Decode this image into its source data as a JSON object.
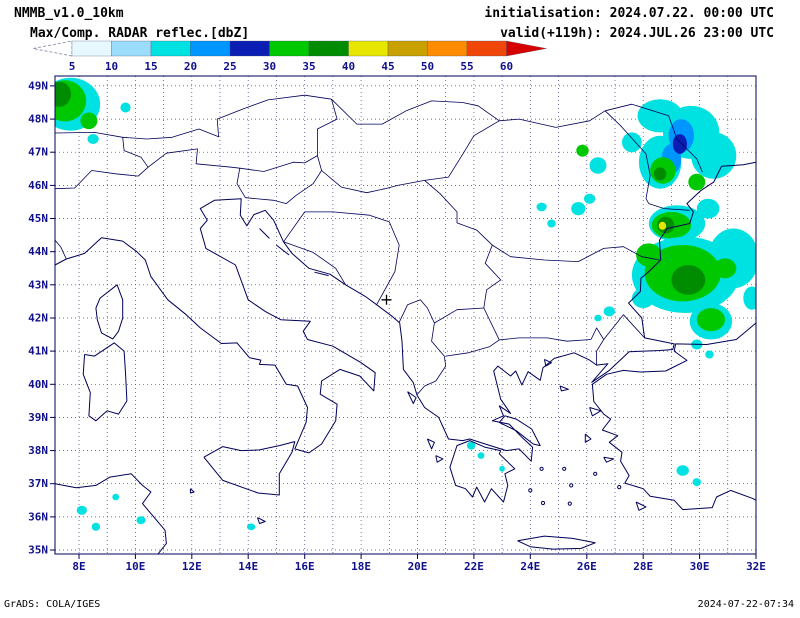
{
  "header": {
    "model": "NMMB_v1.0_10km",
    "init": "initialisation: 2024.07.22. 00:00 UTC",
    "field": "Max/Comp. RADAR reflec.[dbZ]",
    "valid": "valid(+119h): 2024.JUL.26 23:00 UTC"
  },
  "colorbar": {
    "unit": "dbZ",
    "ticks": [
      "5",
      "10",
      "15",
      "20",
      "25",
      "30",
      "35",
      "40",
      "45",
      "50",
      "55",
      "60"
    ],
    "segments": [
      {
        "range": "<5",
        "color": "#ffffff"
      },
      {
        "range": "5-10",
        "color": "#e8f8ff"
      },
      {
        "range": "10-15",
        "color": "#9bdcfa"
      },
      {
        "range": "15-20",
        "color": "#00e1e1"
      },
      {
        "range": "20-25",
        "color": "#0096ff"
      },
      {
        "range": "25-30",
        "color": "#0a1eb4"
      },
      {
        "range": "30-35",
        "color": "#00c800"
      },
      {
        "range": "35-40",
        "color": "#008c00"
      },
      {
        "range": "40-45",
        "color": "#e6e600"
      },
      {
        "range": "45-50",
        "color": "#c8a000"
      },
      {
        "range": "50-55",
        "color": "#ff8c00"
      },
      {
        "range": "55-60",
        "color": "#f0460a"
      },
      {
        "range": ">60",
        "color": "#d70000"
      }
    ]
  },
  "map": {
    "lat_labels": [
      "49N",
      "48N",
      "47N",
      "46N",
      "45N",
      "44N",
      "43N",
      "42N",
      "41N",
      "40N",
      "39N",
      "38N",
      "37N",
      "36N",
      "35N"
    ],
    "lon_labels": [
      "8E",
      "10E",
      "12E",
      "14E",
      "16E",
      "18E",
      "20E",
      "22E",
      "24E",
      "26E",
      "28E",
      "30E",
      "32E"
    ],
    "lon_min": 8,
    "lon_max": 32,
    "lat_min": 35,
    "lat_max": 49,
    "grid_color": "#3a3a96",
    "coast_color": "#000058",
    "label_color": "#10108c",
    "marker": {
      "symbol": "+",
      "lon": 18.9,
      "lat": 42.55
    },
    "blobs": [
      {
        "level": 3,
        "lon": 7.7,
        "lat": 48.45,
        "rx": 1.05,
        "ry": 0.8
      },
      {
        "level": 6,
        "lon": 7.5,
        "lat": 48.55,
        "rx": 0.75,
        "ry": 0.62
      },
      {
        "level": 7,
        "lon": 7.3,
        "lat": 48.75,
        "rx": 0.42,
        "ry": 0.38
      },
      {
        "level": 6,
        "lon": 8.35,
        "lat": 47.95,
        "rx": 0.3,
        "ry": 0.25
      },
      {
        "level": 3,
        "lon": 9.65,
        "lat": 48.35,
        "rx": 0.18,
        "ry": 0.15
      },
      {
        "level": 3,
        "lon": 8.5,
        "lat": 47.4,
        "rx": 0.2,
        "ry": 0.15
      },
      {
        "level": 3,
        "lon": 28.6,
        "lat": 48.1,
        "rx": 0.8,
        "ry": 0.5
      },
      {
        "level": 3,
        "lon": 29.7,
        "lat": 47.6,
        "rx": 1.0,
        "ry": 0.8
      },
      {
        "level": 3,
        "lon": 30.5,
        "lat": 46.9,
        "rx": 0.8,
        "ry": 0.7
      },
      {
        "level": 3,
        "lon": 28.6,
        "lat": 46.7,
        "rx": 0.75,
        "ry": 0.8
      },
      {
        "level": 4,
        "lon": 29.35,
        "lat": 47.5,
        "rx": 0.45,
        "ry": 0.5
      },
      {
        "level": 4,
        "lon": 29.0,
        "lat": 46.8,
        "rx": 0.35,
        "ry": 0.45
      },
      {
        "level": 5,
        "lon": 29.3,
        "lat": 47.25,
        "rx": 0.25,
        "ry": 0.3
      },
      {
        "level": 6,
        "lon": 28.7,
        "lat": 46.45,
        "rx": 0.45,
        "ry": 0.4
      },
      {
        "level": 7,
        "lon": 28.6,
        "lat": 46.35,
        "rx": 0.22,
        "ry": 0.2
      },
      {
        "level": 6,
        "lon": 29.9,
        "lat": 46.1,
        "rx": 0.3,
        "ry": 0.25
      },
      {
        "level": 3,
        "lon": 27.6,
        "lat": 47.3,
        "rx": 0.35,
        "ry": 0.3
      },
      {
        "level": 6,
        "lon": 25.85,
        "lat": 47.05,
        "rx": 0.22,
        "ry": 0.18
      },
      {
        "level": 3,
        "lon": 26.4,
        "lat": 46.6,
        "rx": 0.3,
        "ry": 0.25
      },
      {
        "level": 3,
        "lon": 25.7,
        "lat": 45.3,
        "rx": 0.25,
        "ry": 0.2
      },
      {
        "level": 3,
        "lon": 26.1,
        "lat": 45.6,
        "rx": 0.2,
        "ry": 0.15
      },
      {
        "level": 3,
        "lon": 24.4,
        "lat": 45.35,
        "rx": 0.18,
        "ry": 0.13
      },
      {
        "level": 3,
        "lon": 24.75,
        "lat": 44.85,
        "rx": 0.15,
        "ry": 0.12
      },
      {
        "level": 3,
        "lon": 29.2,
        "lat": 44.85,
        "rx": 1.0,
        "ry": 0.55
      },
      {
        "level": 6,
        "lon": 29.0,
        "lat": 44.8,
        "rx": 0.7,
        "ry": 0.4
      },
      {
        "level": 7,
        "lon": 28.8,
        "lat": 44.8,
        "rx": 0.3,
        "ry": 0.25
      },
      {
        "level": 8,
        "lon": 28.68,
        "lat": 44.78,
        "rx": 0.13,
        "ry": 0.12
      },
      {
        "level": 3,
        "lon": 30.3,
        "lat": 45.3,
        "rx": 0.4,
        "ry": 0.3
      },
      {
        "level": 3,
        "lon": 29.5,
        "lat": 43.3,
        "rx": 1.9,
        "ry": 1.15
      },
      {
        "level": 3,
        "lon": 31.2,
        "lat": 43.8,
        "rx": 0.9,
        "ry": 0.9
      },
      {
        "level": 6,
        "lon": 29.4,
        "lat": 43.35,
        "rx": 1.35,
        "ry": 0.85
      },
      {
        "level": 7,
        "lon": 29.6,
        "lat": 43.15,
        "rx": 0.6,
        "ry": 0.45
      },
      {
        "level": 6,
        "lon": 28.2,
        "lat": 43.9,
        "rx": 0.45,
        "ry": 0.35
      },
      {
        "level": 6,
        "lon": 30.9,
        "lat": 43.5,
        "rx": 0.4,
        "ry": 0.3
      },
      {
        "level": 3,
        "lon": 28.0,
        "lat": 42.6,
        "rx": 0.4,
        "ry": 0.3
      },
      {
        "level": 3,
        "lon": 30.4,
        "lat": 41.9,
        "rx": 0.75,
        "ry": 0.55
      },
      {
        "level": 6,
        "lon": 30.4,
        "lat": 41.95,
        "rx": 0.5,
        "ry": 0.35
      },
      {
        "level": 3,
        "lon": 29.9,
        "lat": 41.2,
        "rx": 0.2,
        "ry": 0.15
      },
      {
        "level": 3,
        "lon": 30.35,
        "lat": 40.9,
        "rx": 0.15,
        "ry": 0.12
      },
      {
        "level": 3,
        "lon": 31.85,
        "lat": 42.6,
        "rx": 0.3,
        "ry": 0.35
      },
      {
        "level": 3,
        "lon": 26.8,
        "lat": 42.2,
        "rx": 0.2,
        "ry": 0.15
      },
      {
        "level": 3,
        "lon": 26.4,
        "lat": 42.0,
        "rx": 0.13,
        "ry": 0.1
      },
      {
        "level": 3,
        "lon": 21.9,
        "lat": 38.15,
        "rx": 0.15,
        "ry": 0.12
      },
      {
        "level": 3,
        "lon": 22.25,
        "lat": 37.85,
        "rx": 0.12,
        "ry": 0.1
      },
      {
        "level": 3,
        "lon": 23.0,
        "lat": 37.45,
        "rx": 0.1,
        "ry": 0.09
      },
      {
        "level": 3,
        "lon": 29.4,
        "lat": 37.4,
        "rx": 0.22,
        "ry": 0.16
      },
      {
        "level": 3,
        "lon": 29.9,
        "lat": 37.05,
        "rx": 0.15,
        "ry": 0.12
      },
      {
        "level": 3,
        "lon": 8.1,
        "lat": 36.2,
        "rx": 0.18,
        "ry": 0.14
      },
      {
        "level": 3,
        "lon": 8.6,
        "lat": 35.7,
        "rx": 0.15,
        "ry": 0.12
      },
      {
        "level": 3,
        "lon": 10.2,
        "lat": 35.9,
        "rx": 0.16,
        "ry": 0.12
      },
      {
        "level": 3,
        "lon": 14.1,
        "lat": 35.7,
        "rx": 0.15,
        "ry": 0.1
      },
      {
        "level": 3,
        "lon": 9.3,
        "lat": 36.6,
        "rx": 0.12,
        "ry": 0.1
      }
    ]
  },
  "footer": {
    "left": "GrADS: COLA/IGES",
    "right": "2024-07-22-07:34"
  }
}
